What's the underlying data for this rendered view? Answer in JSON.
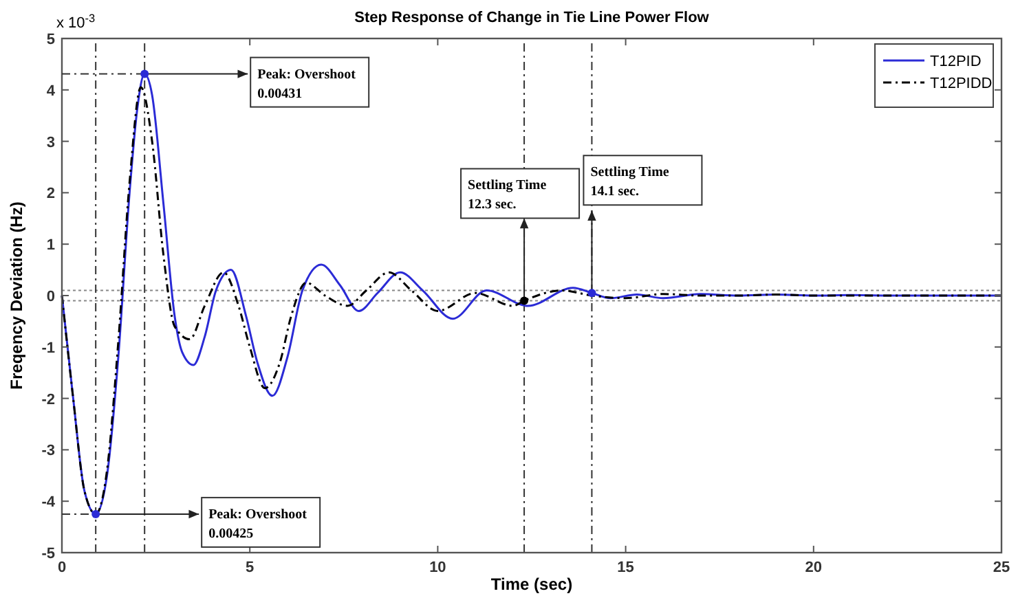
{
  "chart_data": {
    "type": "line",
    "title": "Step Response of Change in Tie Line Power Flow",
    "xlabel": "Time (sec)",
    "ylabel": "Freqency Deviation (Hz)",
    "xlim": [
      0,
      25
    ],
    "xticks": [
      0,
      5,
      10,
      15,
      20,
      25
    ],
    "ylim": [
      -5,
      5
    ],
    "yticks": [
      -5,
      -4,
      -3,
      -2,
      -1,
      0,
      1,
      2,
      3,
      4,
      5
    ],
    "legend": "top right",
    "series": [
      {
        "name": "T12PID",
        "color": "#2b2bd6",
        "line_style": "solid",
        "x": [
          0,
          0.3,
          0.6,
          0.9,
          1.2,
          1.5,
          1.8,
          2.0,
          2.2,
          2.4,
          2.7,
          3.0,
          3.2,
          3.5,
          3.8,
          4.1,
          4.5,
          4.9,
          5.2,
          5.6,
          6.0,
          6.4,
          6.9,
          7.4,
          7.9,
          8.4,
          9.0,
          9.6,
          10.4,
          11.3,
          12.4,
          13.6,
          14.1,
          14.6,
          15.3,
          16,
          17,
          18,
          19,
          20,
          21,
          22,
          23,
          24,
          25
        ],
        "values": [
          0,
          -2.0,
          -3.8,
          -4.25,
          -3.5,
          -1.2,
          2.0,
          3.6,
          4.31,
          3.9,
          1.8,
          -0.4,
          -1.1,
          -1.35,
          -0.8,
          0.1,
          0.5,
          -0.4,
          -1.3,
          -1.95,
          -1.2,
          0.1,
          0.6,
          0.2,
          -0.3,
          0.05,
          0.45,
          0.1,
          -0.45,
          0.1,
          -0.2,
          0.15,
          0.05,
          -0.05,
          0.02,
          -0.05,
          0.03,
          0,
          0.02,
          0,
          0.01,
          0,
          0,
          0,
          0
        ]
      },
      {
        "name": "T12PIDD",
        "color": "#000000",
        "line_style": "dashed",
        "x": [
          0,
          0.3,
          0.6,
          0.9,
          1.2,
          1.5,
          1.8,
          2.1,
          2.4,
          2.7,
          3.0,
          3.4,
          3.8,
          4.3,
          4.7,
          5.0,
          5.4,
          5.8,
          6.1,
          6.5,
          7.0,
          7.6,
          8.1,
          8.7,
          9.3,
          10.0,
          11.0,
          12.0,
          12.3,
          13.3,
          14.1,
          15,
          16,
          17,
          18,
          19,
          20,
          21,
          22,
          23,
          24,
          25
        ],
        "values": [
          0,
          -2.0,
          -3.8,
          -4.25,
          -3.4,
          -0.9,
          2.2,
          4.05,
          3.0,
          0.8,
          -0.6,
          -0.85,
          -0.2,
          0.45,
          -0.2,
          -1.0,
          -1.8,
          -1.3,
          -0.4,
          0.25,
          0.0,
          -0.2,
          0.1,
          0.45,
          0.1,
          -0.3,
          0.05,
          -0.2,
          -0.1,
          0.1,
          0,
          -0.05,
          0.03,
          0,
          0,
          0.02,
          0,
          0,
          0,
          0,
          0,
          0
        ]
      }
    ],
    "ref_lines": [
      {
        "axis": "y",
        "value": 0.1,
        "color": "#888888",
        "line_style": "dotted"
      },
      {
        "axis": "y",
        "value": -0.1,
        "color": "#888888",
        "line_style": "dotted"
      },
      {
        "axis": "x",
        "value": 0.9,
        "color": "#333333",
        "line_style": "dashed"
      },
      {
        "axis": "x",
        "value": 2.2,
        "color": "#333333",
        "line_style": "dashed"
      },
      {
        "axis": "x",
        "value": 12.3,
        "color": "#333333",
        "line_style": "dashed"
      },
      {
        "axis": "x",
        "value": 14.1,
        "color": "#333333",
        "line_style": "dashed"
      }
    ],
    "annotations": [
      "x 10$^{-3}$",
      {
        "text": "Peak: Overshoot\n0.00431",
        "x": 2.2,
        "y": 4.31
      },
      {
        "text": "Peak: Overshoot\n0.00425",
        "x": 0.9,
        "y": -4.25
      },
      {
        "text": "Settling Time\n12.3 sec.",
        "x": 12.3,
        "y": -0.1
      },
      {
        "text": "Settling Time\n14.1 sec.",
        "x": 14.1,
        "y": 0.05
      }
    ]
  }
}
